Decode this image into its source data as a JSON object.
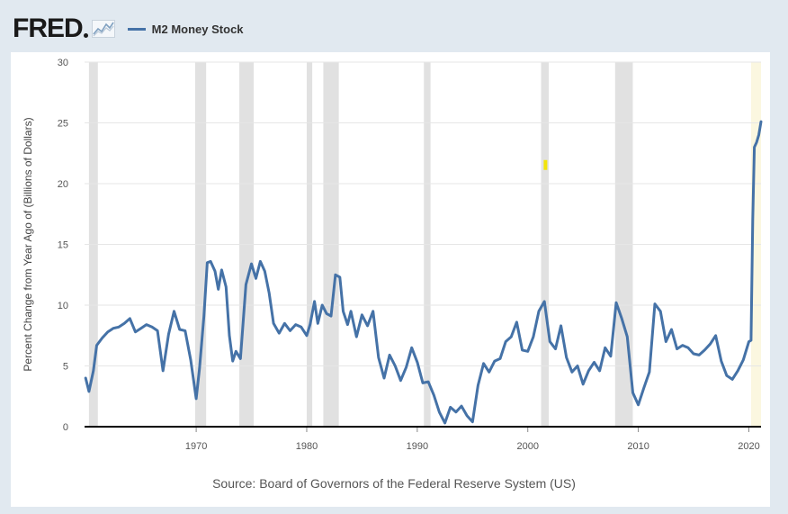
{
  "header": {
    "logo_text": "FRED"
  },
  "source_text": "Source: Board of Governors of the Federal Reserve System (US)",
  "colors": {
    "background": "#e1e9f0",
    "plot": "#ffffff",
    "line": "#4572a7",
    "recession": "#e1e1e1",
    "forecast_shade": "#fbf7e0",
    "axis": "#000000",
    "grid": "#e6e6e6",
    "marker": "#f2e40a"
  },
  "chart_data": {
    "type": "line",
    "title": "",
    "ylabel": "Percent Change from Year Ago of (Billions of Dollars)",
    "xlabel": "",
    "xlim": [
      1959.9,
      2021.1
    ],
    "ylim": [
      0,
      30
    ],
    "yticks": [
      0,
      5,
      10,
      15,
      20,
      25,
      30
    ],
    "xticks": [
      1970,
      1980,
      1990,
      2000,
      2010,
      2020
    ],
    "grid": true,
    "legend_position": "top-left",
    "recessions": [
      [
        1960.3,
        1961.1
      ],
      [
        1969.9,
        1970.9
      ],
      [
        1973.9,
        1975.2
      ],
      [
        1980.0,
        1980.5
      ],
      [
        1981.5,
        1982.9
      ],
      [
        1990.6,
        1991.2
      ],
      [
        2001.2,
        2001.9
      ],
      [
        2007.9,
        2009.5
      ]
    ],
    "shaded_recent": [
      2020.2,
      2021.1
    ],
    "annotation_marker": {
      "x": 2001.6,
      "y": 21.5
    },
    "series": [
      {
        "name": "M2 Money Stock",
        "x": [
          1960.0,
          1960.3,
          1960.7,
          1961.0,
          1961.5,
          1962.0,
          1962.5,
          1963.0,
          1963.5,
          1964.0,
          1964.5,
          1965.0,
          1965.5,
          1966.0,
          1966.5,
          1967.0,
          1967.5,
          1968.0,
          1968.5,
          1969.0,
          1969.5,
          1970.0,
          1970.3,
          1970.7,
          1971.0,
          1971.3,
          1971.7,
          1972.0,
          1972.3,
          1972.7,
          1973.0,
          1973.3,
          1973.6,
          1974.0,
          1974.5,
          1975.0,
          1975.4,
          1975.8,
          1976.2,
          1976.6,
          1977.0,
          1977.5,
          1978.0,
          1978.5,
          1979.0,
          1979.5,
          1980.0,
          1980.3,
          1980.7,
          1981.0,
          1981.4,
          1981.8,
          1982.2,
          1982.6,
          1983.0,
          1983.3,
          1983.7,
          1984.0,
          1984.5,
          1985.0,
          1985.5,
          1986.0,
          1986.5,
          1987.0,
          1987.5,
          1988.0,
          1988.5,
          1989.0,
          1989.5,
          1990.0,
          1990.5,
          1991.0,
          1991.5,
          1992.0,
          1992.5,
          1993.0,
          1993.5,
          1994.0,
          1994.5,
          1995.0,
          1995.5,
          1996.0,
          1996.5,
          1997.0,
          1997.5,
          1998.0,
          1998.5,
          1999.0,
          1999.5,
          2000.0,
          2000.5,
          2001.0,
          2001.5,
          2002.0,
          2002.5,
          2003.0,
          2003.5,
          2004.0,
          2004.5,
          2005.0,
          2005.5,
          2006.0,
          2006.5,
          2007.0,
          2007.5,
          2008.0,
          2008.5,
          2009.0,
          2009.5,
          2010.0,
          2010.5,
          2011.0,
          2011.5,
          2012.0,
          2012.5,
          2013.0,
          2013.5,
          2014.0,
          2014.5,
          2015.0,
          2015.5,
          2016.0,
          2016.5,
          2017.0,
          2017.5,
          2018.0,
          2018.5,
          2019.0,
          2019.5,
          2020.0,
          2020.2,
          2020.35,
          2020.5,
          2020.7,
          2020.9,
          2021.1
        ],
        "values": [
          4.0,
          2.9,
          4.6,
          6.7,
          7.3,
          7.8,
          8.1,
          8.2,
          8.5,
          8.9,
          7.8,
          8.1,
          8.4,
          8.2,
          7.9,
          4.6,
          7.6,
          9.5,
          8.0,
          7.9,
          5.5,
          2.3,
          4.8,
          9.1,
          13.5,
          13.6,
          12.8,
          11.3,
          12.9,
          11.5,
          7.5,
          5.4,
          6.2,
          5.6,
          11.7,
          13.4,
          12.2,
          13.6,
          12.8,
          11.0,
          8.5,
          7.7,
          8.5,
          7.9,
          8.4,
          8.2,
          7.5,
          8.4,
          10.3,
          8.5,
          10.0,
          9.3,
          9.1,
          12.5,
          12.3,
          9.5,
          8.4,
          9.5,
          7.4,
          9.2,
          8.3,
          9.5,
          5.7,
          4.0,
          5.9,
          5.0,
          3.8,
          4.9,
          6.5,
          5.3,
          3.6,
          3.7,
          2.6,
          1.2,
          0.3,
          1.6,
          1.2,
          1.7,
          0.9,
          0.4,
          3.4,
          5.2,
          4.5,
          5.4,
          5.6,
          7.0,
          7.4,
          8.6,
          6.3,
          6.2,
          7.4,
          9.5,
          10.3,
          7.0,
          6.4,
          8.3,
          5.7,
          4.5,
          5.0,
          3.5,
          4.6,
          5.3,
          4.6,
          6.5,
          5.8,
          10.2,
          8.9,
          7.4,
          2.8,
          1.8,
          3.2,
          4.5,
          10.1,
          9.5,
          7.0,
          8.0,
          6.4,
          6.7,
          6.5,
          6.0,
          5.9,
          6.3,
          6.8,
          7.5,
          5.4,
          4.2,
          3.9,
          4.6,
          5.5,
          7.0,
          7.1,
          17.0,
          23.0,
          23.4,
          24.0,
          25.1
        ]
      }
    ]
  }
}
